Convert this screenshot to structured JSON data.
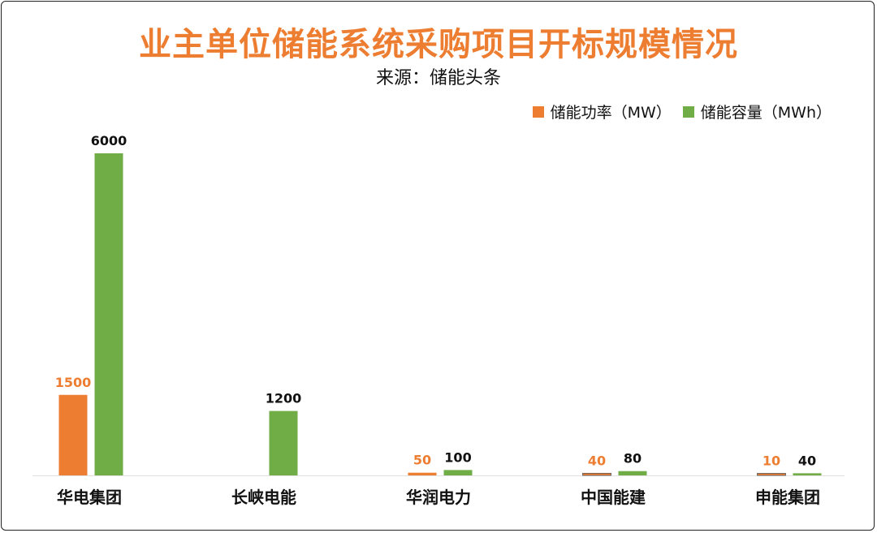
{
  "chart_data": {
    "type": "bar",
    "title": "业主单位储能系统采购项目开标规模情况",
    "subtitle": "来源：储能头条",
    "xlabel": "",
    "ylabel": "",
    "ylim": [
      0,
      6000
    ],
    "grid": false,
    "legend_position": "top-right",
    "categories": [
      "华电集团",
      "长峡电能",
      "华润电力",
      "中国能建",
      "申能集团"
    ],
    "series": [
      {
        "name": "储能功率（MW）",
        "color": "#ED7D31",
        "label_color": "#ED7D31",
        "values": [
          1500,
          null,
          50,
          40,
          10
        ]
      },
      {
        "name": "储能容量（MWh）",
        "color": "#70AD47",
        "label_color": "#111111",
        "values": [
          6000,
          1200,
          100,
          80,
          40
        ]
      }
    ]
  }
}
